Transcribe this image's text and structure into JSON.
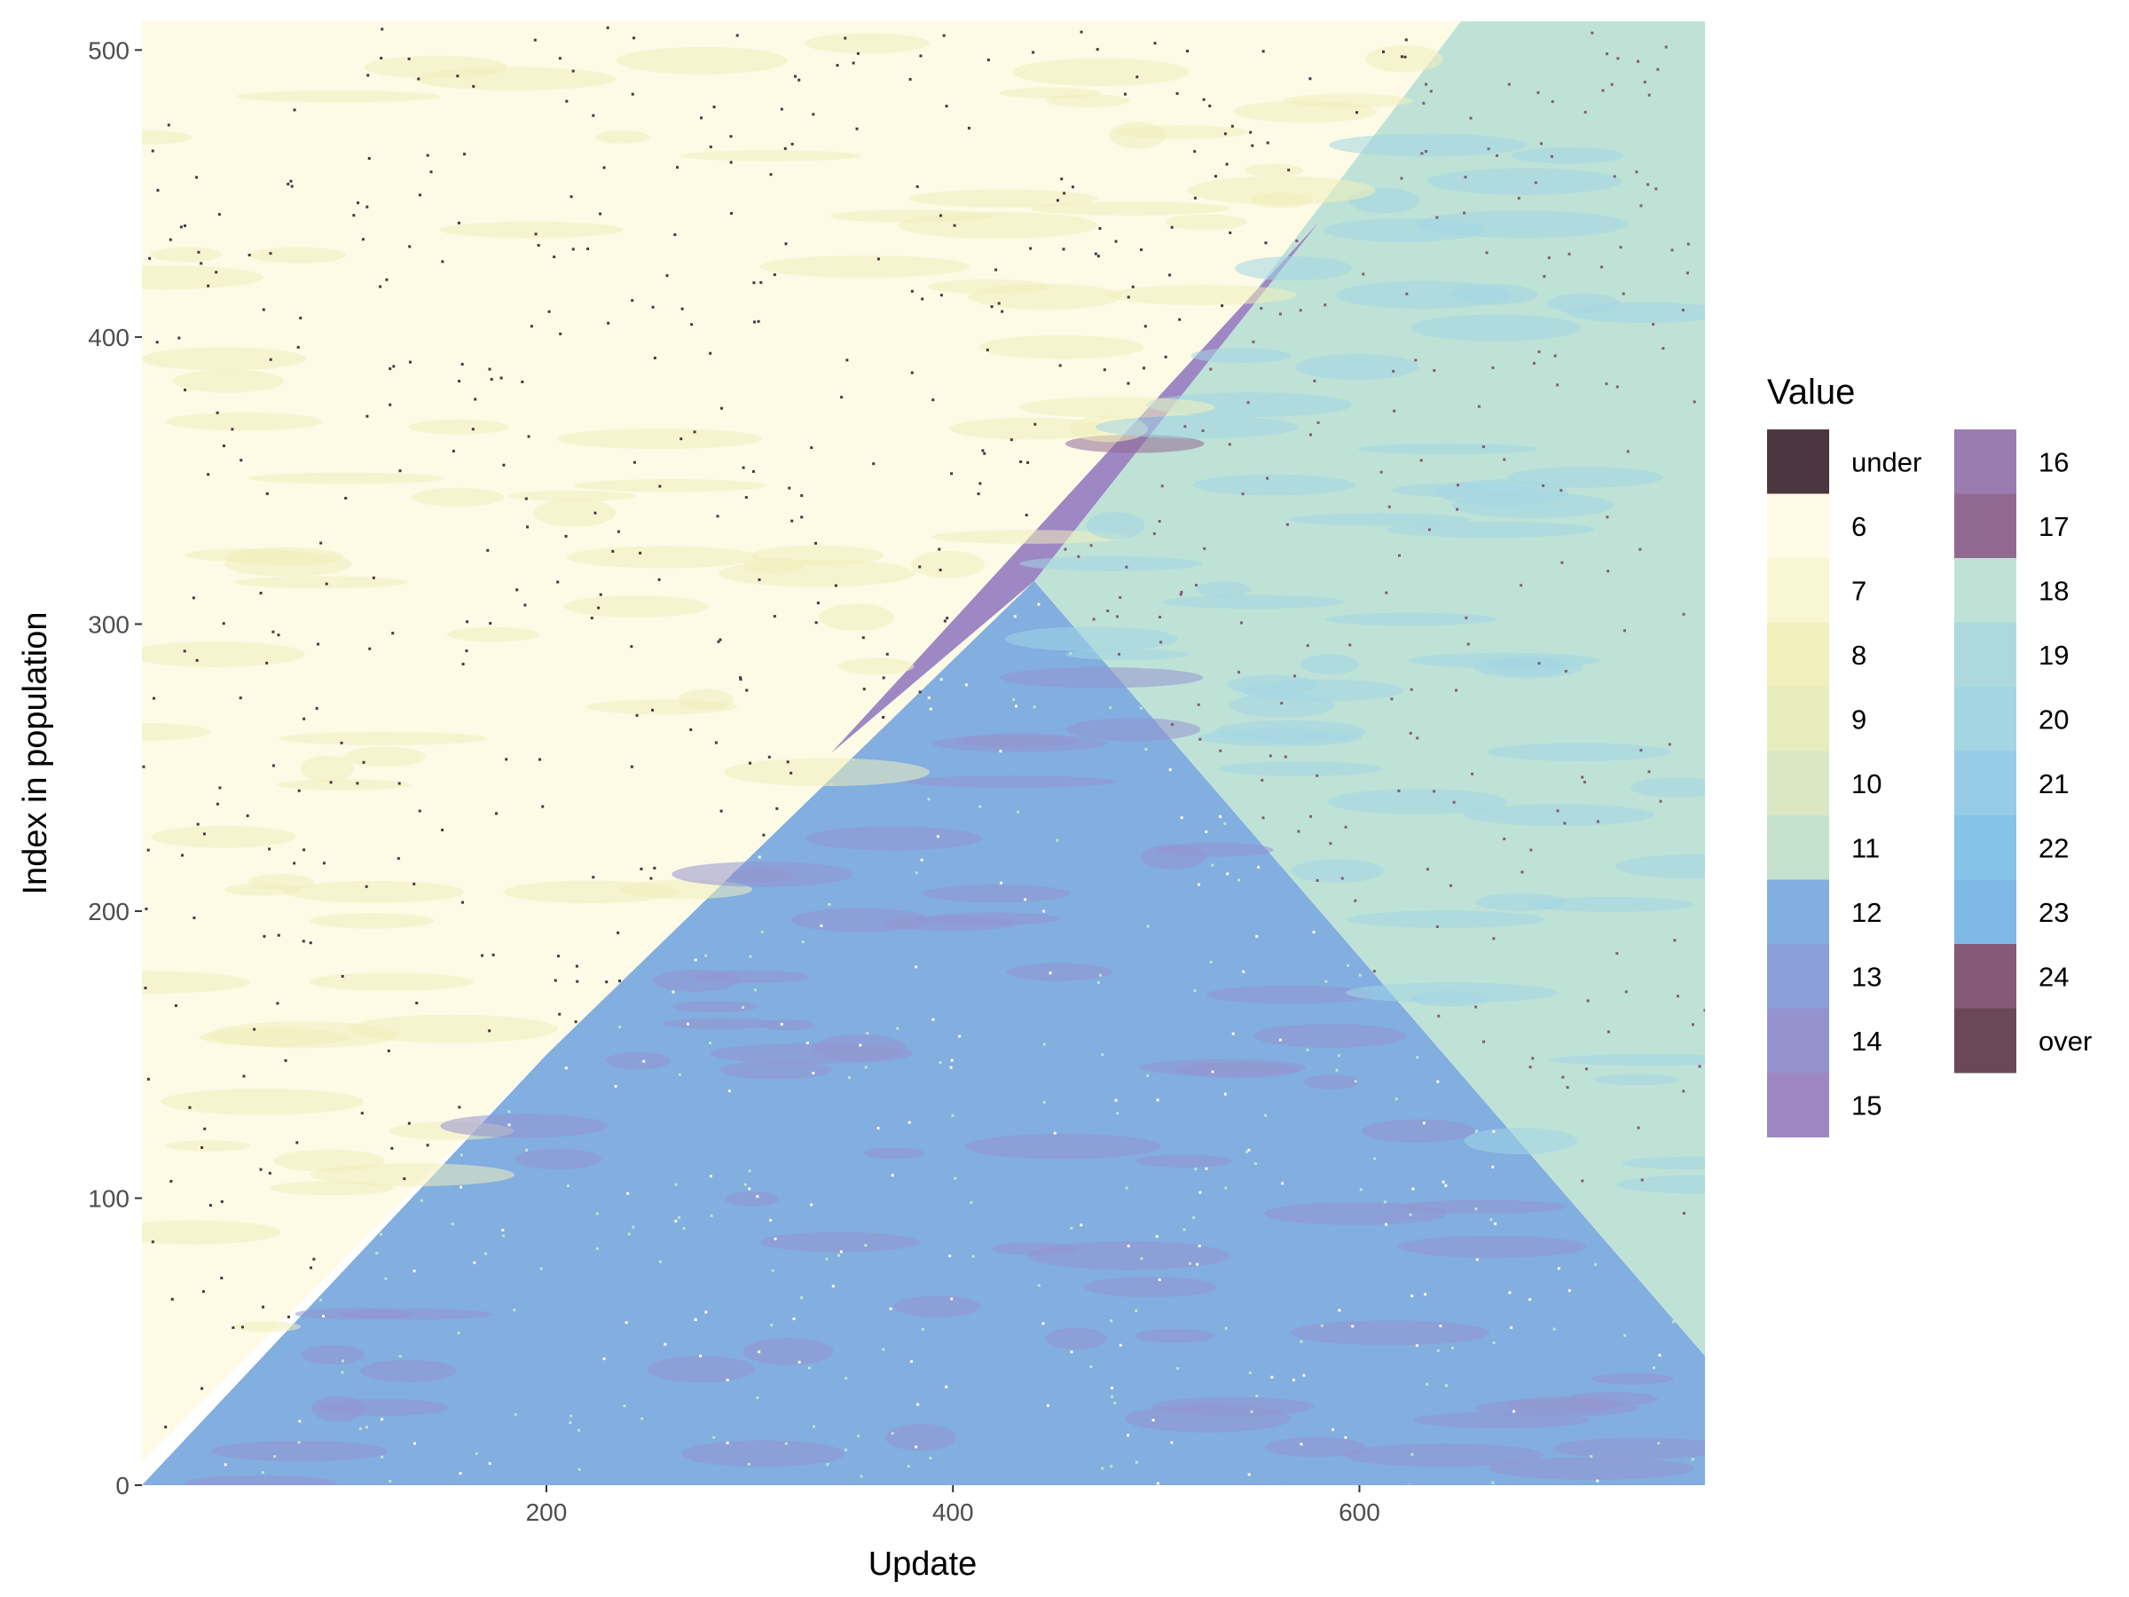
{
  "chart_data": {
    "type": "heatmap",
    "xlabel": "Update",
    "ylabel": "Index in population",
    "xlim": [
      1,
      770
    ],
    "ylim": [
      0,
      510
    ],
    "x_ticks": [
      200,
      400,
      600
    ],
    "y_ticks": [
      0,
      100,
      200,
      300,
      400,
      500
    ],
    "grid": false,
    "legend": {
      "title": "Value",
      "position": "right",
      "columns": 2,
      "entries": [
        {
          "label": "under",
          "color": "#4a373f"
        },
        {
          "label": "6",
          "color": "#fdfae6"
        },
        {
          "label": "7",
          "color": "#f9f6d4"
        },
        {
          "label": "8",
          "color": "#f1efbc"
        },
        {
          "label": "9",
          "color": "#e8edbf"
        },
        {
          "label": "10",
          "color": "#dbe7c3"
        },
        {
          "label": "11",
          "color": "#c4e2cd"
        },
        {
          "label": "12",
          "color": "#82aee0"
        },
        {
          "label": "13",
          "color": "#8a9fd9"
        },
        {
          "label": "14",
          "color": "#9593cf"
        },
        {
          "label": "15",
          "color": "#9e88c4"
        },
        {
          "label": "16",
          "color": "#9b7bb0"
        },
        {
          "label": "17",
          "color": "#926a91"
        },
        {
          "label": "18",
          "color": "#bfe2d7"
        },
        {
          "label": "19",
          "color": "#aed9dc"
        },
        {
          "label": "20",
          "color": "#a3d5e3"
        },
        {
          "label": "21",
          "color": "#96cce6"
        },
        {
          "label": "22",
          "color": "#85c3e8"
        },
        {
          "label": "23",
          "color": "#7fb9e5"
        },
        {
          "label": "24",
          "color": "#845a78"
        },
        {
          "label": "over",
          "color": "#6b4858"
        }
      ]
    },
    "regions": [
      {
        "dominant_value": "6",
        "description_points": [
          [
            1,
            510
          ],
          [
            1,
            8
          ],
          [
            200,
            150
          ],
          [
            440,
            315
          ],
          [
            650,
            510
          ]
        ]
      },
      {
        "dominant_value": "12",
        "description_points": [
          [
            1,
            0
          ],
          [
            770,
            0
          ],
          [
            770,
            45
          ],
          [
            440,
            315
          ],
          [
            200,
            150
          ]
        ]
      },
      {
        "dominant_value": "18",
        "description_points": [
          [
            440,
            315
          ],
          [
            650,
            510
          ],
          [
            770,
            510
          ],
          [
            770,
            45
          ]
        ]
      },
      {
        "dominant_value": "15",
        "description_points": [
          [
            340,
            255
          ],
          [
            440,
            315
          ],
          [
            580,
            440
          ]
        ]
      }
    ]
  }
}
